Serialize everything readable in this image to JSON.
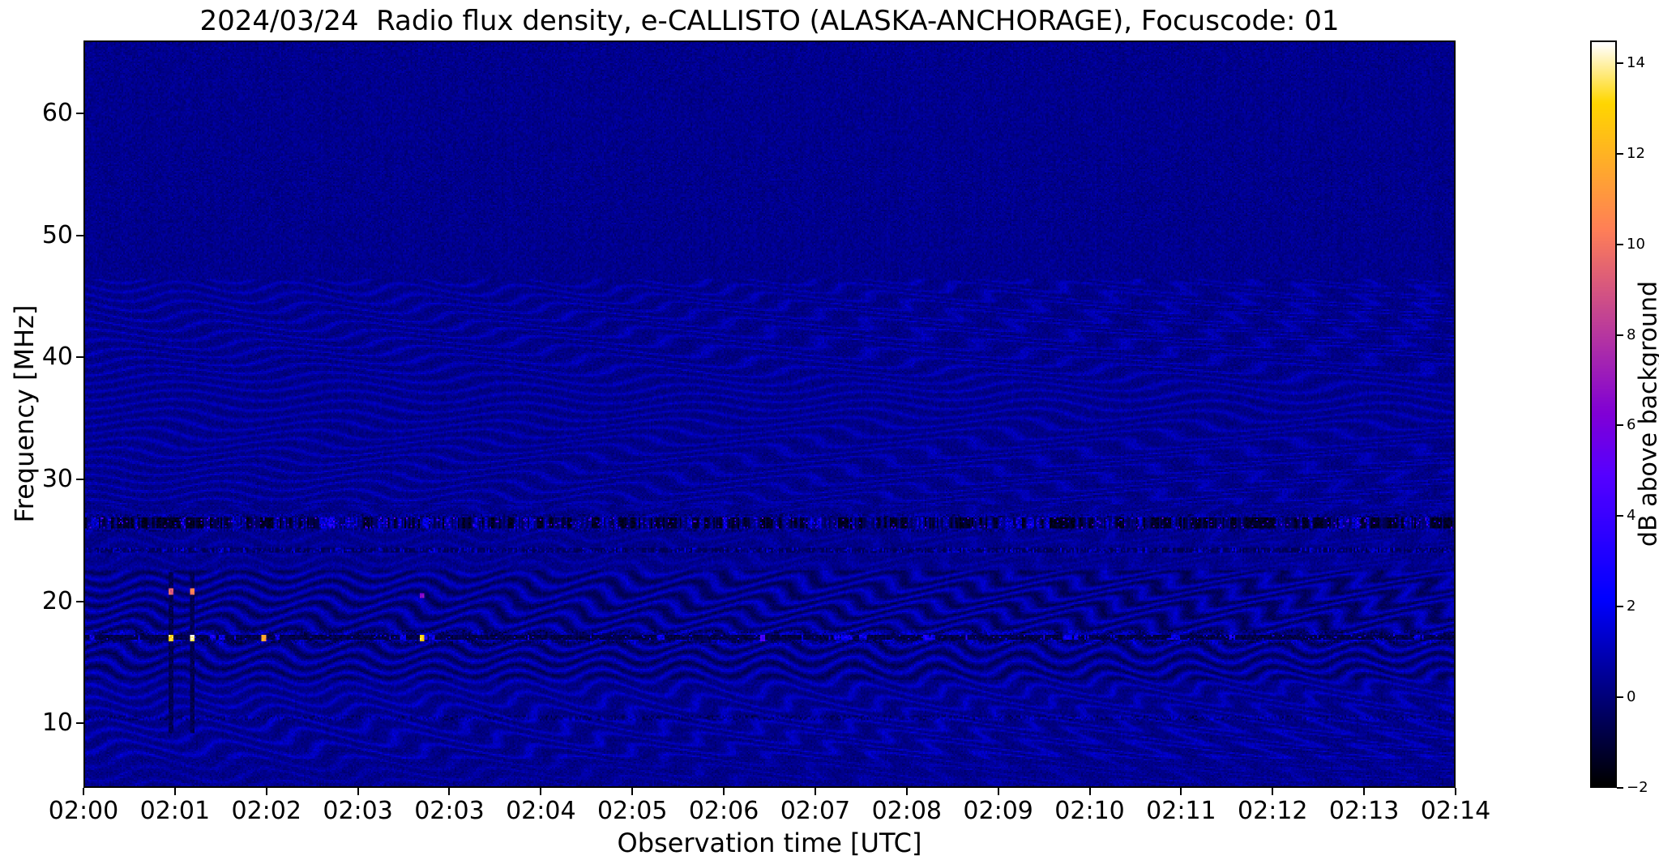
{
  "chart_data": {
    "type": "heatmap",
    "title": "2024/03/24  Radio flux density, e-CALLISTO (ALASKA-ANCHORAGE), Focuscode: 01",
    "xlabel": "Observation time [UTC]",
    "ylabel": "Frequency [MHz]",
    "x_tick_labels": [
      "02:00",
      "02:01",
      "02:02",
      "02:03",
      "02:03",
      "02:04",
      "02:05",
      "02:06",
      "02:07",
      "02:08",
      "02:09",
      "02:10",
      "02:11",
      "02:12",
      "02:13",
      "02:14"
    ],
    "x_range_utc": [
      "02:00",
      "02:14"
    ],
    "y_ticks": [
      60,
      50,
      40,
      30,
      20,
      10
    ],
    "y_range_mhz": [
      4.7,
      66.0
    ],
    "grid": false,
    "legend": "none",
    "colorbar": {
      "label": "dB above background",
      "tick_labels": [
        "−2",
        "0",
        "2",
        "4",
        "6",
        "8",
        "10",
        "12",
        "14"
      ],
      "tick_values": [
        -2,
        0,
        2,
        4,
        6,
        8,
        10,
        12,
        14
      ],
      "vmin": -2,
      "vmax": 14.5,
      "colormap": "gnuplot2 (black-blue-violet-magenta-orange-yellow-white)"
    },
    "features": {
      "background_db": 0.28,
      "noise_db": 0.55,
      "ripple_description": "quasi-periodic wavy interference ripples across the band below ~46 MHz",
      "ripple_regions": [
        {
          "f_max": 46.5,
          "f_min": 28.0,
          "amp_db": 0.55
        },
        {
          "f_max": 28.0,
          "f_min": 22.5,
          "amp_db": 0.35
        },
        {
          "f_max": 22.5,
          "f_min": 7.0,
          "amp_db": 0.7
        },
        {
          "f_max": 7.0,
          "f_min": 4.7,
          "amp_db": 0.35
        }
      ],
      "rfi_bands": [
        {
          "freq_mhz": 26.5,
          "character": "strong speckled dark/bright RFI band",
          "min_db": -2,
          "max_db": 5.5
        },
        {
          "freq_mhz": 24.2,
          "character": "weaker speckled band",
          "min_db": -1,
          "max_db": 3
        },
        {
          "freq_mhz": 17.0,
          "character": "narrow dark line with intermittent bright segments",
          "min_db": -1.3,
          "max_db": 4
        },
        {
          "freq_mhz": 10.4,
          "character": "faint noisy line",
          "min_db": -1,
          "max_db": 1
        }
      ],
      "bursts": [
        {
          "time_utc": "02:00:52",
          "time_frac": 0.062,
          "f1_mhz": 17.0,
          "f1_db": 12.5,
          "f2_mhz": 20.8,
          "f2_db": 8.5,
          "dark_streak": true
        },
        {
          "time_utc": "02:01:06",
          "time_frac": 0.078,
          "f1_mhz": 17.0,
          "f1_db": 13.5,
          "f2_mhz": 20.8,
          "f2_db": 9.5,
          "dark_streak": true
        },
        {
          "time_utc": "02:01:49",
          "time_frac": 0.13,
          "f1_mhz": 17.0,
          "f1_db": 10.5,
          "f2_mhz": null,
          "f2_db": null,
          "dark_streak": false
        },
        {
          "time_utc": "02:03:26",
          "time_frac": 0.245,
          "f1_mhz": 17.0,
          "f1_db": 12.5,
          "f2_mhz": 20.5,
          "f2_db": 5.5,
          "dark_streak": false
        },
        {
          "time_utc": "02:06:55",
          "time_frac": 0.494,
          "f1_mhz": 17.0,
          "f1_db": 3.5,
          "f2_mhz": null,
          "f2_db": null,
          "dark_streak": false
        }
      ]
    }
  }
}
